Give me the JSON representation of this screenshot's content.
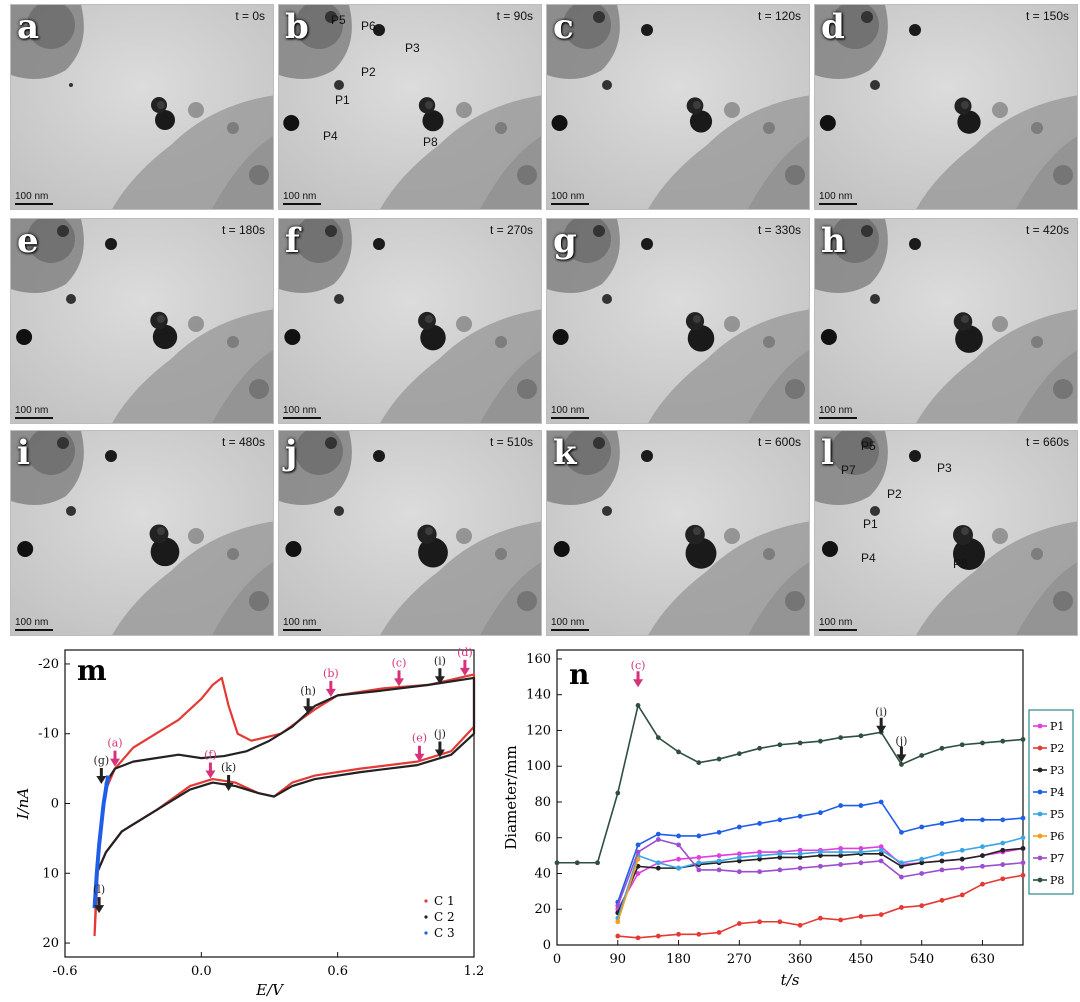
{
  "panels": [
    {
      "label": "a",
      "time": "t = 0s",
      "scale": "100 nm"
    },
    {
      "label": "b",
      "time": "t = 90s",
      "scale": "100 nm",
      "particles": [
        "P5",
        "P6",
        "P3",
        "P2",
        "P1",
        "P4",
        "P8"
      ]
    },
    {
      "label": "c",
      "time": "t = 120s",
      "scale": "100 nm"
    },
    {
      "label": "d",
      "time": "t = 150s",
      "scale": "100 nm"
    },
    {
      "label": "e",
      "time": "t = 180s",
      "scale": "100 nm"
    },
    {
      "label": "f",
      "time": "t = 270s",
      "scale": "100 nm"
    },
    {
      "label": "g",
      "time": "t = 330s",
      "scale": "100 nm"
    },
    {
      "label": "h",
      "time": "t = 420s",
      "scale": "100 nm"
    },
    {
      "label": "i",
      "time": "t = 480s",
      "scale": "100 nm"
    },
    {
      "label": "j",
      "time": "t = 510s",
      "scale": "100 nm"
    },
    {
      "label": "k",
      "time": "t = 600s",
      "scale": "100 nm"
    },
    {
      "label": "l",
      "time": "t = 660s",
      "scale": "100 nm",
      "particles": [
        "P5",
        "P7",
        "P3",
        "P2",
        "P1",
        "P4",
        "P8"
      ]
    }
  ],
  "colors": {
    "red": "#e53935",
    "black": "#222222",
    "blue": "#1e5ee8",
    "magenta": "#d6337a",
    "panelBg": "#cfcfcf"
  },
  "chart_data": [
    {
      "panel": "m",
      "type": "line",
      "xlabel": "E/V",
      "ylabel": "I/nA",
      "xticks": [
        "-0.6",
        "0.0",
        "0.6",
        "1.2"
      ],
      "yticks": [
        "-20",
        "-10",
        "0",
        "10",
        "20"
      ],
      "xlim": [
        -0.6,
        1.2
      ],
      "ylim": [
        -22,
        22
      ],
      "y_inverted": true,
      "legend": [
        "C 1",
        "C 2",
        "C 3"
      ],
      "series": [
        {
          "name": "C 1",
          "color": "#e53935",
          "x": [
            -0.47,
            -0.45,
            -0.42,
            -0.38,
            -0.3,
            -0.2,
            -0.1,
            0.0,
            0.05,
            0.09,
            0.12,
            0.16,
            0.22,
            0.35,
            0.5,
            0.6,
            0.8,
            1.0,
            1.2,
            1.2,
            1.1,
            0.95,
            0.7,
            0.5,
            0.4,
            0.32,
            0.25,
            0.15,
            0.05,
            -0.05,
            -0.2,
            -0.35,
            -0.42,
            -0.46,
            -0.47
          ],
          "y": [
            19,
            6,
            -2,
            -5,
            -8,
            -10,
            -12,
            -15,
            -17,
            -18,
            -14,
            -10,
            -9,
            -10,
            -13.5,
            -15.5,
            -16.5,
            -17,
            -18.5,
            -11,
            -7.5,
            -6,
            -5,
            -4,
            -3,
            -1,
            -1.5,
            -3,
            -3.5,
            -2.5,
            1,
            4,
            7,
            10,
            19
          ]
        },
        {
          "name": "C 2",
          "color": "#222222",
          "x": [
            -0.47,
            -0.45,
            -0.42,
            -0.38,
            -0.3,
            -0.2,
            -0.1,
            0.0,
            0.1,
            0.2,
            0.3,
            0.4,
            0.5,
            0.6,
            0.8,
            1.0,
            1.2,
            1.2,
            1.1,
            0.95,
            0.7,
            0.5,
            0.4,
            0.32,
            0.25,
            0.15,
            0.05,
            -0.05,
            -0.2,
            -0.35,
            -0.42,
            -0.46,
            -0.47
          ],
          "y": [
            15,
            6,
            -3,
            -5,
            -6,
            -6.5,
            -7,
            -6.5,
            -6.8,
            -7.5,
            -9,
            -11,
            -14,
            -15.5,
            -16.2,
            -17,
            -18,
            -10,
            -7,
            -5.5,
            -4.5,
            -3.5,
            -2.5,
            -1,
            -1.5,
            -2.5,
            -3,
            -2,
            1,
            4,
            7,
            10,
            15
          ]
        },
        {
          "name": "C 3",
          "color": "#1e5ee8",
          "x": [
            -0.47,
            -0.46,
            -0.45,
            -0.44,
            -0.43,
            -0.42,
            -0.41
          ],
          "y": [
            15,
            10,
            6,
            3,
            0,
            -2,
            -4
          ]
        }
      ],
      "annotations": [
        {
          "text": "(a)",
          "color": "magenta",
          "x": -0.38,
          "y": -5
        },
        {
          "text": "(b)",
          "color": "magenta",
          "x": 0.57,
          "y": -15
        },
        {
          "text": "(c)",
          "color": "magenta",
          "x": 0.87,
          "y": -16.5
        },
        {
          "text": "(d)",
          "color": "magenta",
          "x": 1.16,
          "y": -18
        },
        {
          "text": "(e)",
          "color": "magenta",
          "x": 0.96,
          "y": -5.7
        },
        {
          "text": "(f)",
          "color": "magenta",
          "x": 0.04,
          "y": -3.3
        },
        {
          "text": "(g)",
          "color": "black",
          "x": -0.44,
          "y": -2.5
        },
        {
          "text": "(h)",
          "color": "black",
          "x": 0.47,
          "y": -12.5
        },
        {
          "text": "(i)",
          "color": "black",
          "x": 1.05,
          "y": -16.8
        },
        {
          "text": "(j)",
          "color": "black",
          "x": 1.05,
          "y": -6.3
        },
        {
          "text": "(k)",
          "color": "black",
          "x": 0.12,
          "y": -1.5
        },
        {
          "text": "(l)",
          "color": "black",
          "x": -0.45,
          "y": 16
        }
      ]
    },
    {
      "panel": "n",
      "type": "line",
      "xlabel": "t/s",
      "ylabel": "Diameter/mm",
      "xticks": [
        "0",
        "90",
        "180",
        "270",
        "360",
        "450",
        "540",
        "630"
      ],
      "yticks": [
        "0",
        "20",
        "40",
        "60",
        "80",
        "100",
        "120",
        "140",
        "160"
      ],
      "xlim": [
        0,
        690
      ],
      "ylim": [
        0,
        165
      ],
      "legend_position": "right",
      "series": [
        {
          "name": "P1",
          "color": "#e23de0",
          "x": [
            90,
            120,
            150,
            180,
            210,
            240,
            270,
            300,
            330,
            360,
            390,
            420,
            450,
            480,
            510,
            540,
            570,
            600,
            630,
            660,
            690
          ],
          "y": [
            20,
            40,
            46,
            48,
            49,
            50,
            51,
            52,
            52,
            53,
            53,
            54,
            54,
            55,
            45,
            46,
            47,
            48,
            50,
            52,
            54
          ]
        },
        {
          "name": "P2",
          "color": "#e53935",
          "x": [
            90,
            120,
            150,
            180,
            210,
            240,
            270,
            300,
            330,
            360,
            390,
            420,
            450,
            480,
            510,
            540,
            570,
            600,
            630,
            660,
            690
          ],
          "y": [
            5,
            4,
            5,
            6,
            6,
            7,
            12,
            13,
            13,
            11,
            15,
            14,
            16,
            17,
            21,
            22,
            25,
            28,
            34,
            37,
            39
          ]
        },
        {
          "name": "P3",
          "color": "#222222",
          "x": [
            90,
            120,
            150,
            180,
            210,
            240,
            270,
            300,
            330,
            360,
            390,
            420,
            450,
            480,
            510,
            540,
            570,
            600,
            630,
            660,
            690
          ],
          "y": [
            18,
            44,
            43,
            43,
            45,
            46,
            47,
            48,
            49,
            49,
            50,
            50,
            51,
            51,
            44,
            46,
            47,
            48,
            50,
            53,
            54
          ]
        },
        {
          "name": "P4",
          "color": "#1e5ee8",
          "x": [
            90,
            120,
            150,
            180,
            210,
            240,
            270,
            300,
            330,
            360,
            390,
            420,
            450,
            480,
            510,
            540,
            570,
            600,
            630,
            660,
            690
          ],
          "y": [
            24,
            56,
            62,
            61,
            61,
            63,
            66,
            68,
            70,
            72,
            74,
            78,
            78,
            80,
            63,
            66,
            68,
            70,
            70,
            70,
            71
          ]
        },
        {
          "name": "P5",
          "color": "#3da5e6",
          "x": [
            90,
            120,
            150,
            180,
            210,
            240,
            270,
            300,
            330,
            360,
            390,
            420,
            450,
            480,
            510,
            540,
            570,
            600,
            630,
            660,
            690
          ],
          "y": [
            15,
            50,
            46,
            43,
            46,
            47,
            49,
            50,
            51,
            51,
            52,
            52,
            52,
            53,
            46,
            48,
            51,
            53,
            55,
            57,
            60
          ]
        },
        {
          "name": "P6",
          "color": "#f0a020",
          "x": [
            90,
            120
          ],
          "y": [
            13,
            48
          ]
        },
        {
          "name": "P7",
          "color": "#9b4fd0",
          "x": [
            90,
            120,
            150,
            180,
            210,
            240,
            270,
            300,
            330,
            360,
            390,
            420,
            450,
            480,
            510,
            540,
            570,
            600,
            630,
            660,
            690
          ],
          "y": [
            22,
            52,
            59,
            56,
            42,
            42,
            41,
            41,
            42,
            43,
            44,
            45,
            46,
            47,
            38,
            40,
            42,
            43,
            44,
            45,
            46
          ]
        },
        {
          "name": "P8",
          "color": "#2f4f3f",
          "x": [
            0,
            30,
            60,
            90,
            120,
            150,
            180,
            210,
            240,
            270,
            300,
            330,
            360,
            390,
            420,
            450,
            480,
            510,
            540,
            570,
            600,
            630,
            660,
            690
          ],
          "y": [
            46,
            46,
            46,
            85,
            134,
            116,
            108,
            102,
            104,
            107,
            110,
            112,
            113,
            114,
            116,
            117,
            119,
            101,
            106,
            110,
            112,
            113,
            114,
            115
          ]
        }
      ],
      "annotations": [
        {
          "text": "(c)",
          "color": "magenta",
          "x": 120,
          "y": 152
        },
        {
          "text": "(i)",
          "color": "black",
          "x": 480,
          "y": 126
        },
        {
          "text": "(j)",
          "color": "black",
          "x": 510,
          "y": 110
        }
      ]
    }
  ],
  "labels": {
    "m": "m",
    "n": "n"
  }
}
